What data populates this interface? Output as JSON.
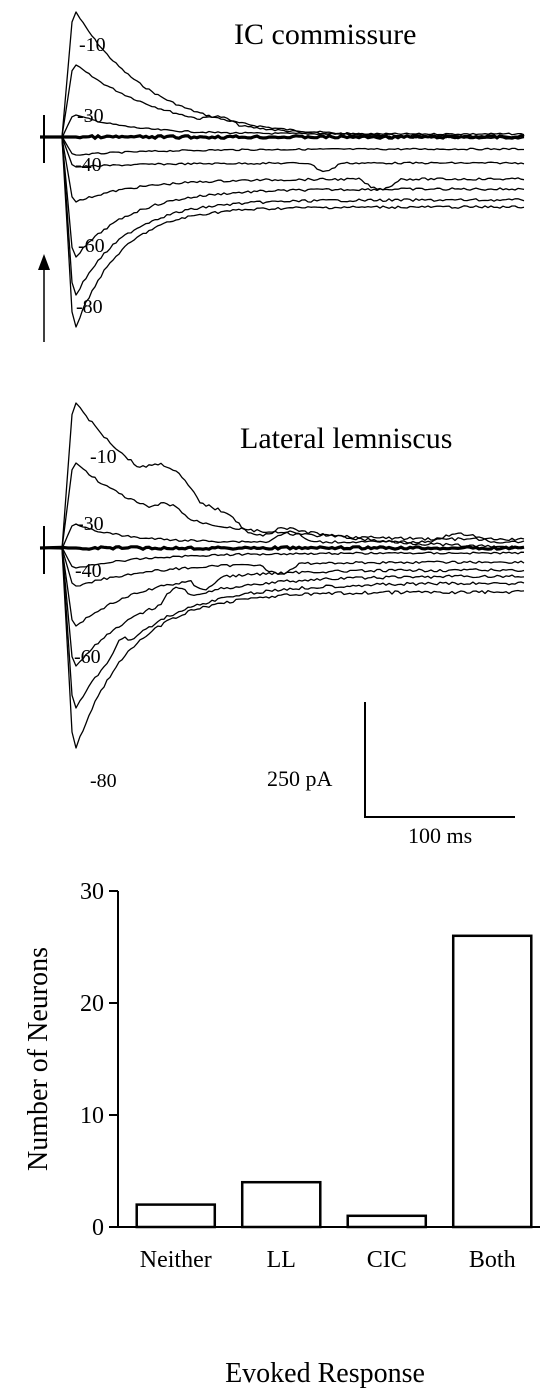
{
  "chart_data": [
    {
      "type": "line",
      "title": "IC commissure",
      "trace_labels": [
        "-10",
        "-30",
        "-40",
        "-60",
        "-80"
      ],
      "scale_bar": {
        "current_label": "250 pA",
        "time_label": "100 ms"
      }
    },
    {
      "type": "line",
      "title": "Lateral lemniscus",
      "trace_labels": [
        "-10",
        "-30",
        "-40",
        "-60",
        "-80"
      ],
      "scale_bar": {
        "current_label": "250 pA",
        "time_label": "100 ms"
      }
    },
    {
      "type": "bar",
      "categories": [
        "Neither",
        "LL",
        "CIC",
        "Both"
      ],
      "values": [
        2,
        4,
        1,
        26
      ],
      "xlabel": "Evoked Response",
      "ylabel": "Number of Neurons",
      "ylim": [
        0,
        30
      ],
      "yticks": [
        "0",
        "10",
        "20",
        "30"
      ]
    }
  ]
}
